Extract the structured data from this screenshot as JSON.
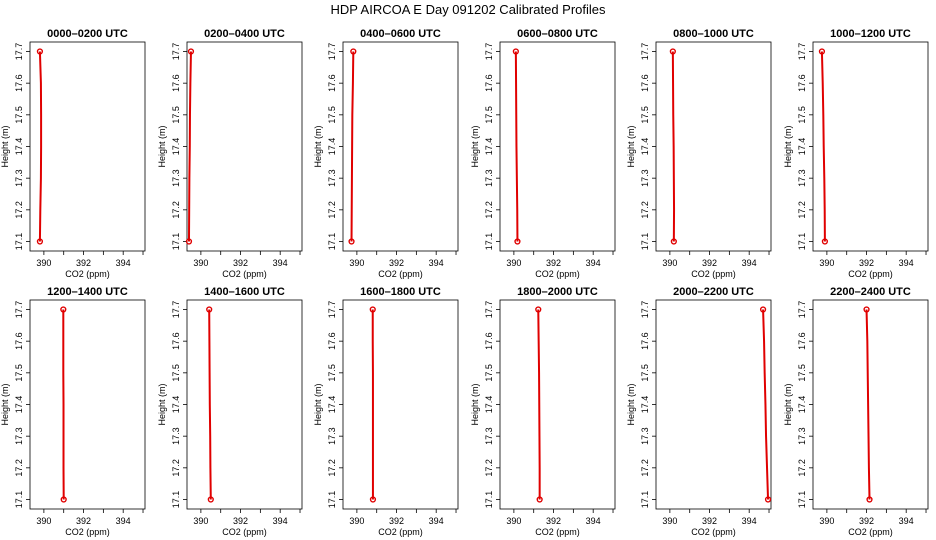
{
  "title": "HDP AIRCOA E  Day 091202  Calibrated Profiles",
  "chart_data": [
    {
      "type": "line",
      "title": "0000–0200 UTC",
      "xlabel": "CO2 (ppm)",
      "ylabel": "Height (m)",
      "xlim": [
        389.3,
        395.1
      ],
      "ylim": [
        17.07,
        17.73
      ],
      "xticks": [
        390,
        392,
        394
      ],
      "yticks": [
        17.1,
        17.2,
        17.3,
        17.4,
        17.5,
        17.6,
        17.7
      ],
      "series": [
        {
          "x": [
            389.8,
            389.82,
            389.85,
            389.86,
            389.86,
            389.85,
            389.8
          ],
          "y": [
            17.1,
            17.2,
            17.3,
            17.4,
            17.5,
            17.6,
            17.7
          ]
        }
      ],
      "endpoints": [
        {
          "x": 389.8,
          "y": 17.1
        },
        {
          "x": 389.8,
          "y": 17.7
        }
      ]
    },
    {
      "type": "line",
      "title": "0200–0400 UTC",
      "xlabel": "CO2 (ppm)",
      "ylabel": "Height (m)",
      "xlim": [
        389.3,
        395.1
      ],
      "ylim": [
        17.07,
        17.73
      ],
      "xticks": [
        390,
        392,
        394
      ],
      "yticks": [
        17.1,
        17.2,
        17.3,
        17.4,
        17.5,
        17.6,
        17.7
      ],
      "series": [
        {
          "x": [
            389.4,
            389.41,
            389.42,
            389.44,
            389.45,
            389.47,
            389.5
          ],
          "y": [
            17.1,
            17.2,
            17.3,
            17.4,
            17.5,
            17.6,
            17.7
          ]
        }
      ],
      "endpoints": [
        {
          "x": 389.4,
          "y": 17.1
        },
        {
          "x": 389.5,
          "y": 17.7
        }
      ]
    },
    {
      "type": "line",
      "title": "0400–0600 UTC",
      "xlabel": "CO2 (ppm)",
      "ylabel": "Height (m)",
      "xlim": [
        389.3,
        395.1
      ],
      "ylim": [
        17.07,
        17.73
      ],
      "xticks": [
        390,
        392,
        394
      ],
      "yticks": [
        17.1,
        17.2,
        17.3,
        17.4,
        17.5,
        17.6,
        17.7
      ],
      "series": [
        {
          "x": [
            389.73,
            389.74,
            389.75,
            389.76,
            389.77,
            389.8,
            389.82
          ],
          "y": [
            17.1,
            17.2,
            17.3,
            17.4,
            17.5,
            17.6,
            17.7
          ]
        }
      ],
      "endpoints": [
        {
          "x": 389.73,
          "y": 17.1
        },
        {
          "x": 389.82,
          "y": 17.7
        }
      ]
    },
    {
      "type": "line",
      "title": "0600–0800 UTC",
      "xlabel": "CO2 (ppm)",
      "ylabel": "Height (m)",
      "xlim": [
        389.3,
        395.1
      ],
      "ylim": [
        17.07,
        17.73
      ],
      "xticks": [
        390,
        392,
        394
      ],
      "yticks": [
        17.1,
        17.2,
        17.3,
        17.4,
        17.5,
        17.6,
        17.7
      ],
      "series": [
        {
          "x": [
            390.18,
            390.17,
            390.15,
            390.13,
            390.12,
            390.11,
            390.1
          ],
          "y": [
            17.1,
            17.2,
            17.3,
            17.4,
            17.5,
            17.6,
            17.7
          ]
        }
      ],
      "endpoints": [
        {
          "x": 390.18,
          "y": 17.1
        },
        {
          "x": 390.1,
          "y": 17.7
        }
      ]
    },
    {
      "type": "line",
      "title": "0800–1000 UTC",
      "xlabel": "CO2 (ppm)",
      "ylabel": "Height (m)",
      "xlim": [
        389.3,
        395.1
      ],
      "ylim": [
        17.07,
        17.73
      ],
      "xticks": [
        390,
        392,
        394
      ],
      "yticks": [
        17.1,
        17.2,
        17.3,
        17.4,
        17.5,
        17.6,
        17.7
      ],
      "series": [
        {
          "x": [
            390.2,
            390.21,
            390.2,
            390.19,
            390.17,
            390.16,
            390.15
          ],
          "y": [
            17.1,
            17.2,
            17.3,
            17.4,
            17.5,
            17.6,
            17.7
          ]
        }
      ],
      "endpoints": [
        {
          "x": 390.2,
          "y": 17.1
        },
        {
          "x": 390.15,
          "y": 17.7
        }
      ]
    },
    {
      "type": "line",
      "title": "1000–1200 UTC",
      "xlabel": "CO2 (ppm)",
      "ylabel": "Height (m)",
      "xlim": [
        389.3,
        395.1
      ],
      "ylim": [
        17.07,
        17.73
      ],
      "xticks": [
        390,
        392,
        394
      ],
      "yticks": [
        17.1,
        17.2,
        17.3,
        17.4,
        17.5,
        17.6,
        17.7
      ],
      "series": [
        {
          "x": [
            389.9,
            389.89,
            389.87,
            389.84,
            389.82,
            389.79,
            389.75
          ],
          "y": [
            17.1,
            17.2,
            17.3,
            17.4,
            17.5,
            17.6,
            17.7
          ]
        }
      ],
      "endpoints": [
        {
          "x": 389.9,
          "y": 17.1
        },
        {
          "x": 389.75,
          "y": 17.7
        }
      ]
    },
    {
      "type": "line",
      "title": "1200–1400 UTC",
      "xlabel": "CO2 (ppm)",
      "ylabel": "Height (m)",
      "xlim": [
        389.3,
        395.1
      ],
      "ylim": [
        17.07,
        17.73
      ],
      "xticks": [
        390,
        392,
        394
      ],
      "yticks": [
        17.1,
        17.2,
        17.3,
        17.4,
        17.5,
        17.6,
        17.7
      ],
      "series": [
        {
          "x": [
            391.0,
            390.99,
            390.99,
            390.99,
            390.98,
            390.98,
            390.98
          ],
          "y": [
            17.1,
            17.2,
            17.3,
            17.4,
            17.5,
            17.6,
            17.7
          ]
        }
      ],
      "endpoints": [
        {
          "x": 391.0,
          "y": 17.1
        },
        {
          "x": 390.98,
          "y": 17.7
        }
      ]
    },
    {
      "type": "line",
      "title": "1400–1600 UTC",
      "xlabel": "CO2 (ppm)",
      "ylabel": "Height (m)",
      "xlim": [
        389.3,
        395.1
      ],
      "ylim": [
        17.07,
        17.73
      ],
      "xticks": [
        390,
        392,
        394
      ],
      "yticks": [
        17.1,
        17.2,
        17.3,
        17.4,
        17.5,
        17.6,
        17.7
      ],
      "series": [
        {
          "x": [
            390.5,
            390.48,
            390.47,
            390.45,
            390.44,
            390.43,
            390.42
          ],
          "y": [
            17.1,
            17.2,
            17.3,
            17.4,
            17.5,
            17.6,
            17.7
          ]
        }
      ],
      "endpoints": [
        {
          "x": 390.5,
          "y": 17.1
        },
        {
          "x": 390.42,
          "y": 17.7
        }
      ]
    },
    {
      "type": "line",
      "title": "1600–1800 UTC",
      "xlabel": "CO2 (ppm)",
      "ylabel": "Height (m)",
      "xlim": [
        389.3,
        395.1
      ],
      "ylim": [
        17.07,
        17.73
      ],
      "xticks": [
        390,
        392,
        394
      ],
      "yticks": [
        17.1,
        17.2,
        17.3,
        17.4,
        17.5,
        17.6,
        17.7
      ],
      "series": [
        {
          "x": [
            390.81,
            390.81,
            390.81,
            390.81,
            390.81,
            390.8,
            390.8
          ],
          "y": [
            17.1,
            17.2,
            17.3,
            17.4,
            17.5,
            17.6,
            17.7
          ]
        }
      ],
      "endpoints": [
        {
          "x": 390.81,
          "y": 17.1
        },
        {
          "x": 390.8,
          "y": 17.7
        }
      ]
    },
    {
      "type": "line",
      "title": "1800–2000 UTC",
      "xlabel": "CO2 (ppm)",
      "ylabel": "Height (m)",
      "xlim": [
        389.3,
        395.1
      ],
      "ylim": [
        17.07,
        17.73
      ],
      "xticks": [
        390,
        392,
        394
      ],
      "yticks": [
        17.1,
        17.2,
        17.3,
        17.4,
        17.5,
        17.6,
        17.7
      ],
      "series": [
        {
          "x": [
            391.3,
            391.3,
            391.29,
            391.28,
            391.27,
            391.25,
            391.23
          ],
          "y": [
            17.1,
            17.2,
            17.3,
            17.4,
            17.5,
            17.6,
            17.7
          ]
        }
      ],
      "endpoints": [
        {
          "x": 391.3,
          "y": 17.1
        },
        {
          "x": 391.23,
          "y": 17.7
        }
      ]
    },
    {
      "type": "line",
      "title": "2000–2200 UTC",
      "xlabel": "CO2 (ppm)",
      "ylabel": "Height (m)",
      "xlim": [
        389.3,
        395.1
      ],
      "ylim": [
        17.07,
        17.73
      ],
      "xticks": [
        390,
        392,
        394
      ],
      "yticks": [
        17.1,
        17.2,
        17.3,
        17.4,
        17.5,
        17.6,
        17.7
      ],
      "series": [
        {
          "x": [
            394.95,
            394.9,
            394.85,
            394.82,
            394.78,
            394.75,
            394.7
          ],
          "y": [
            17.1,
            17.2,
            17.3,
            17.4,
            17.5,
            17.6,
            17.7
          ]
        }
      ],
      "endpoints": [
        {
          "x": 394.95,
          "y": 17.1
        },
        {
          "x": 394.7,
          "y": 17.7
        }
      ]
    },
    {
      "type": "line",
      "title": "2200–2400 UTC",
      "xlabel": "CO2 (ppm)",
      "ylabel": "Height (m)",
      "xlim": [
        389.3,
        395.1
      ],
      "ylim": [
        17.07,
        17.73
      ],
      "xticks": [
        390,
        392,
        394
      ],
      "yticks": [
        17.1,
        17.2,
        17.3,
        17.4,
        17.5,
        17.6,
        17.7
      ],
      "series": [
        {
          "x": [
            392.15,
            392.12,
            392.1,
            392.08,
            392.06,
            392.04,
            392.0
          ],
          "y": [
            17.1,
            17.2,
            17.3,
            17.4,
            17.5,
            17.6,
            17.7
          ]
        }
      ],
      "endpoints": [
        {
          "x": 392.15,
          "y": 17.1
        },
        {
          "x": 392.0,
          "y": 17.7
        }
      ]
    }
  ],
  "colors": {
    "line": "#e00000",
    "marker": "#e00000",
    "axis": "#000000"
  }
}
